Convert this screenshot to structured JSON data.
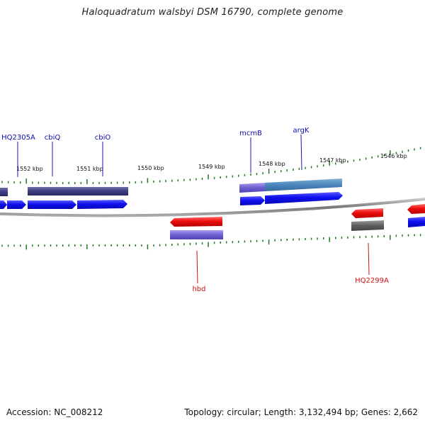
{
  "title": "Haloquadratum walsbyi DSM 16790, complete genome",
  "footer": {
    "accession": "Accession: NC_008212",
    "summary": "Topology: circular; Length: 3,132,494 bp; Genes: 2,662"
  },
  "kbp_labels": [
    "1552 kbp",
    "1551 kbp",
    "1550 kbp",
    "1549 kbp",
    "1548 kbp",
    "1547 kbp",
    "1546 kbp"
  ],
  "gene_labels": {
    "forward": [
      "HQ2305A",
      "cbiQ",
      "cbiO",
      "mcmB",
      "argK"
    ],
    "reverse": [
      "hbd",
      "HQ2299A"
    ]
  },
  "colors": {
    "forward_cds": "#1a1aee",
    "reverse_cds": "#ee1111",
    "forward_label": "#0b0bb0",
    "reverse_label": "#cc1111",
    "tick": "#1f7a1f",
    "backbone": "#888888"
  }
}
